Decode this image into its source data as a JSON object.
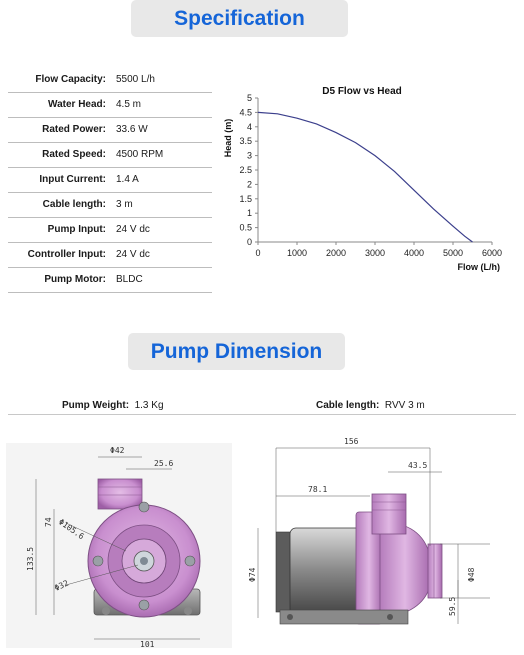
{
  "spec_title": "Specification",
  "specs": [
    {
      "label": "Flow Capacity:",
      "value": "5500 L/h"
    },
    {
      "label": "Water Head:",
      "value": "4.5 m"
    },
    {
      "label": "Rated Power:",
      "value": "33.6 W"
    },
    {
      "label": "Rated Speed:",
      "value": "4500 RPM"
    },
    {
      "label": "Input Current:",
      "value": "1.4 A"
    },
    {
      "label": "Cable length:",
      "value": "3 m"
    },
    {
      "label": "Pump Input:",
      "value": "24 V dc"
    },
    {
      "label": "Controller Input:",
      "value": "24 V dc"
    },
    {
      "label": "Pump  Motor:",
      "value": "BLDC"
    }
  ],
  "chart_data": {
    "type": "line",
    "title": "D5 Flow vs Head",
    "xlabel": "Flow (L/h)",
    "ylabel": "Head (m)",
    "xlim": [
      0,
      6000
    ],
    "ylim": [
      0,
      5
    ],
    "xticks": [
      0,
      1000,
      2000,
      3000,
      4000,
      5000,
      6000
    ],
    "yticks": [
      0,
      0.5,
      1,
      1.5,
      2,
      2.5,
      3,
      3.5,
      4,
      4.5,
      5
    ],
    "ytick_labels": [
      "0",
      "0.5",
      "1",
      "1.5",
      "2",
      "2.5",
      "3",
      "3.5",
      "4",
      "4.5",
      "5"
    ],
    "series": [
      {
        "color": "#3b3f8c",
        "x": [
          0,
          500,
          1000,
          1500,
          2000,
          2500,
          3000,
          3500,
          4000,
          4500,
          5000,
          5300,
          5500
        ],
        "y": [
          4.5,
          4.45,
          4.3,
          4.1,
          3.8,
          3.45,
          3.0,
          2.45,
          1.8,
          1.15,
          0.55,
          0.2,
          0.0
        ]
      }
    ],
    "grid": false
  },
  "dim_title": "Pump Dimension",
  "weight": {
    "label": "Pump Weight:",
    "value": "1.3 Kg"
  },
  "cable": {
    "label": "Cable length:",
    "value": "RVV 3 m"
  },
  "front_dims": {
    "d42": "Φ42",
    "w256": "25.6",
    "h74": "74",
    "d1056": "Φ105.6",
    "h1335": "133.5",
    "d32": "Φ32",
    "w101": "101"
  },
  "side_dims": {
    "w156": "156",
    "w435": "43.5",
    "w781": "78.1",
    "d74": "Φ74",
    "d48": "Φ48",
    "h595": "59.5"
  },
  "colors": {
    "accent": "#1565d8",
    "pump": "#c98fcf",
    "curve": "#3b3f8c"
  }
}
